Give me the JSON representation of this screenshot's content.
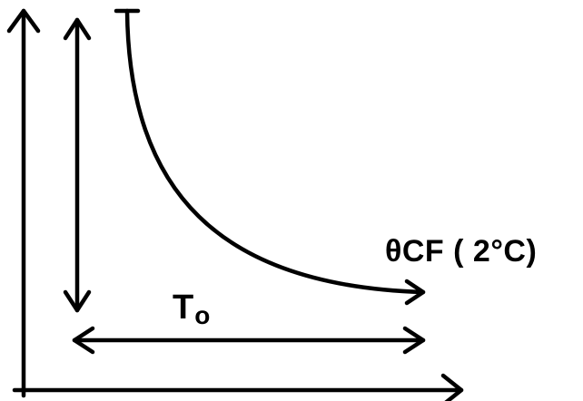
{
  "diagram": {
    "curve_label": "θCF ( 2°C)",
    "bottom_arrow_label": {
      "main": "T",
      "subscript": "o"
    }
  }
}
